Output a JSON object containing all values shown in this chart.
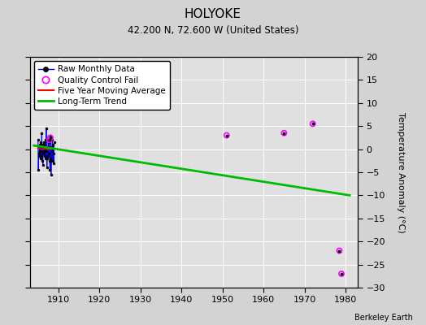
{
  "title": "HOLYOKE",
  "subtitle": "42.200 N, 72.600 W (United States)",
  "ylabel": "Temperature Anomaly (°C)",
  "watermark": "Berkeley Earth",
  "xlim": [
    1903,
    1983
  ],
  "ylim": [
    -30,
    20
  ],
  "xticks": [
    1910,
    1920,
    1930,
    1940,
    1950,
    1960,
    1970,
    1980
  ],
  "yticks": [
    -30,
    -25,
    -20,
    -15,
    -10,
    -5,
    0,
    5,
    10,
    15,
    20
  ],
  "raw_monthly_x": [
    1905.0,
    1905.083,
    1905.167,
    1905.25,
    1905.333,
    1905.417,
    1905.5,
    1905.583,
    1905.667,
    1905.75,
    1905.833,
    1905.917,
    1906.0,
    1906.083,
    1906.167,
    1906.25,
    1906.333,
    1906.417,
    1906.5,
    1906.583,
    1906.667,
    1906.75,
    1906.833,
    1906.917,
    1907.0,
    1907.083,
    1907.167,
    1907.25,
    1907.333,
    1907.417,
    1907.5,
    1907.583,
    1907.667,
    1907.75,
    1907.833,
    1907.917,
    1908.0,
    1908.083,
    1908.167,
    1908.25,
    1908.333,
    1908.417,
    1908.5,
    1908.583,
    1908.667,
    1908.75,
    1908.833,
    1908.917
  ],
  "raw_monthly_y": [
    2.0,
    -4.5,
    -1.0,
    -1.5,
    0.5,
    -0.5,
    1.0,
    -2.0,
    1.5,
    -0.5,
    -1.5,
    3.5,
    -2.5,
    1.0,
    -3.5,
    -1.0,
    -0.5,
    1.0,
    1.5,
    -1.5,
    -0.5,
    0.5,
    2.0,
    -2.0,
    4.5,
    -0.5,
    -4.0,
    -2.0,
    -1.5,
    0.5,
    2.0,
    -1.0,
    1.5,
    0.5,
    -2.5,
    -4.5,
    -2.0,
    3.0,
    -5.5,
    -2.5,
    -0.5,
    0.5,
    2.0,
    -2.5,
    1.0,
    -1.0,
    -3.0,
    1.5
  ],
  "qc_fail_x": [
    1907.75,
    1908.0,
    1951.0,
    1965.0,
    1972.0,
    1978.5,
    1979.0
  ],
  "qc_fail_y": [
    2.0,
    2.5,
    3.0,
    3.5,
    5.5,
    -22.0,
    -27.0
  ],
  "trend_x": [
    1904,
    1981
  ],
  "trend_y": [
    0.8,
    -10.0
  ],
  "moving_avg_x": [
    1905.0,
    1905.5,
    1906.0,
    1906.5,
    1907.0,
    1907.5,
    1908.0,
    1908.5
  ],
  "moving_avg_y": [
    0.3,
    0.1,
    -0.1,
    0.05,
    0.1,
    -0.05,
    0.0,
    0.1
  ],
  "colors": {
    "raw_line": "#0000ff",
    "raw_dot": "#000000",
    "qc_fail": "#ff00ff",
    "moving_avg": "#ff0000",
    "trend": "#00bb00",
    "fig_bg": "#d3d3d3",
    "plot_bg": "#e0e0e0",
    "grid": "#ffffff"
  }
}
